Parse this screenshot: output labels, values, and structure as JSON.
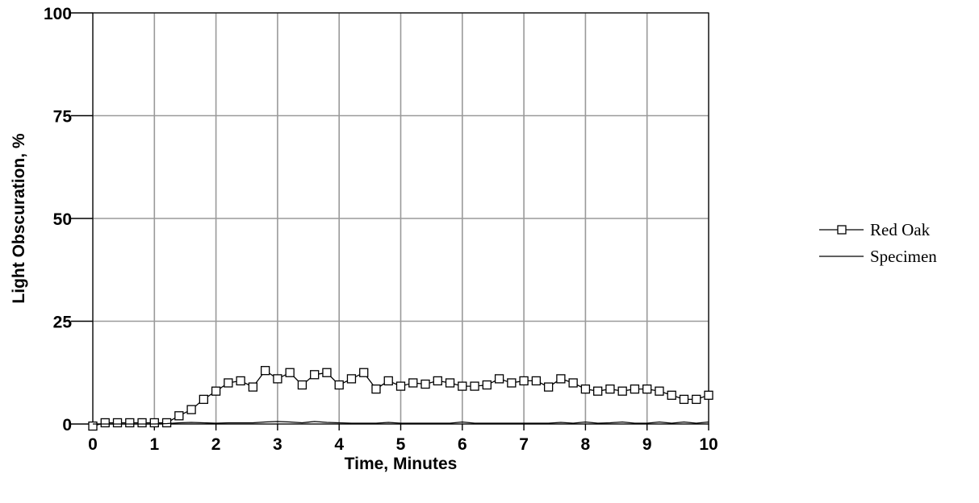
{
  "chart_data": {
    "type": "line",
    "xlabel": "Time,  Minutes",
    "ylabel": "Light Obscuration, %",
    "xlim": [
      0,
      10
    ],
    "ylim": [
      0,
      100
    ],
    "x_ticks": [
      "0",
      "1",
      "2",
      "3",
      "4",
      "5",
      "6",
      "7",
      "8",
      "9",
      "10"
    ],
    "y_ticks": [
      "0",
      "25",
      "50",
      "75",
      "100"
    ],
    "grid": true,
    "legend_position": "right",
    "series": [
      {
        "name": "Red Oak",
        "marker": "square",
        "color": "#000000",
        "x": [
          0,
          0.2,
          0.4,
          0.6,
          0.8,
          1.0,
          1.2,
          1.4,
          1.6,
          1.8,
          2.0,
          2.2,
          2.4,
          2.6,
          2.8,
          3.0,
          3.2,
          3.4,
          3.6,
          3.8,
          4.0,
          4.2,
          4.4,
          4.6,
          4.8,
          5.0,
          5.2,
          5.4,
          5.6,
          5.8,
          6.0,
          6.2,
          6.4,
          6.6,
          6.8,
          7.0,
          7.2,
          7.4,
          7.6,
          7.8,
          8.0,
          8.2,
          8.4,
          8.6,
          8.8,
          9.0,
          9.2,
          9.4,
          9.6,
          9.8,
          10.0
        ],
        "y": [
          -0.5,
          0.3,
          0.3,
          0.3,
          0.3,
          0.3,
          0.3,
          2,
          3.5,
          6,
          8,
          10,
          10.5,
          9,
          13,
          11,
          12.5,
          9.5,
          12,
          12.5,
          9.5,
          11,
          12.5,
          8.5,
          10.5,
          9.2,
          10,
          9.7,
          10.5,
          10,
          9.2,
          9.2,
          9.5,
          11,
          10,
          10.5,
          10.5,
          9,
          11,
          10,
          8.5,
          8,
          8.5,
          8,
          8.5,
          8.5,
          8,
          7,
          6,
          6,
          7
        ]
      },
      {
        "name": "Specimen",
        "marker": "none",
        "color": "#000000",
        "x": [
          0,
          0.2,
          0.4,
          0.6,
          0.8,
          1.0,
          1.2,
          1.4,
          1.6,
          1.8,
          2.0,
          2.2,
          2.4,
          2.6,
          2.8,
          3.0,
          3.2,
          3.4,
          3.6,
          3.8,
          4.0,
          4.2,
          4.4,
          4.6,
          4.8,
          5.0,
          5.2,
          5.4,
          5.6,
          5.8,
          6.0,
          6.2,
          6.4,
          6.6,
          6.8,
          7.0,
          7.2,
          7.4,
          7.6,
          7.8,
          8.0,
          8.2,
          8.4,
          8.6,
          8.8,
          9.0,
          9.2,
          9.4,
          9.6,
          9.8,
          10.0
        ],
        "y": [
          0,
          0,
          0,
          0,
          0,
          0,
          0.1,
          0.3,
          0.4,
          0.3,
          0.2,
          0.3,
          0.3,
          0.3,
          0.5,
          0.6,
          0.5,
          0.3,
          0.6,
          0.4,
          0.3,
          0.2,
          0.2,
          0.2,
          0.4,
          0.2,
          0.2,
          0.2,
          0.2,
          0.2,
          0.5,
          0.2,
          0.2,
          0.2,
          0.2,
          0.2,
          0.2,
          0.2,
          0.4,
          0.2,
          0.5,
          0.2,
          0.3,
          0.5,
          0.2,
          0.2,
          0.5,
          0.2,
          0.5,
          0.2,
          0.5
        ]
      }
    ]
  }
}
